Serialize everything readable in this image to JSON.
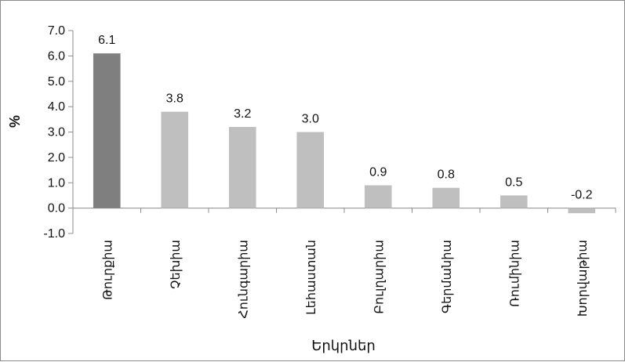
{
  "chart_data": {
    "type": "bar",
    "title": "",
    "xlabel": "Երկրներ",
    "ylabel": "%",
    "ylim": [
      -1.0,
      7.0
    ],
    "yticks": [
      -1.0,
      0.0,
      1.0,
      2.0,
      3.0,
      4.0,
      5.0,
      6.0,
      7.0
    ],
    "ytick_labels": [
      "-1.0",
      "0.0",
      "1.0",
      "2.0",
      "3.0",
      "4.0",
      "5.0",
      "6.0",
      "7.0"
    ],
    "categories": [
      "Թուրքիա",
      "Չեխիա",
      "Հունգարիա",
      "Լեհաստան",
      "Բուլղարիա",
      "Գերմանիա",
      "Ռումինիա",
      "Խորվաթիա"
    ],
    "values": [
      6.1,
      3.8,
      3.2,
      3.0,
      0.9,
      0.8,
      0.5,
      -0.2
    ],
    "value_labels": [
      "6.1",
      "3.8",
      "3.2",
      "3.0",
      "0.9",
      "0.8",
      "0.5",
      "-0.2"
    ],
    "colors": [
      "#7f7f7f",
      "#bfbfbf",
      "#bfbfbf",
      "#bfbfbf",
      "#bfbfbf",
      "#bfbfbf",
      "#bfbfbf",
      "#bfbfbf"
    ],
    "grid": false,
    "legend": "none"
  }
}
